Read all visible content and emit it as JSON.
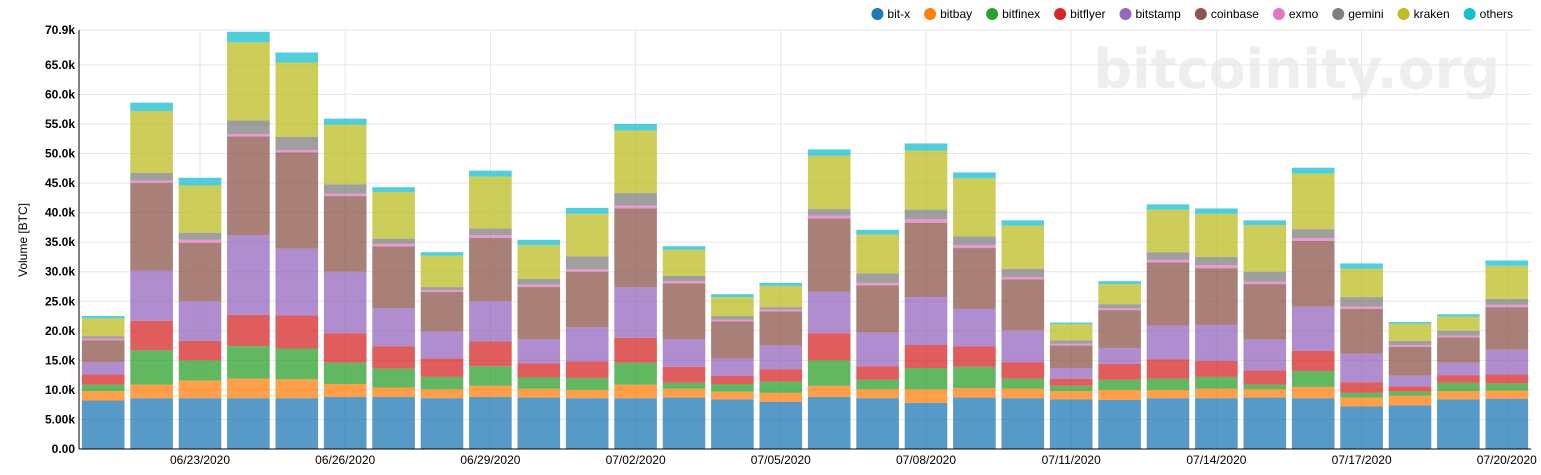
{
  "chart_data": {
    "type": "bar",
    "stacked": true,
    "watermark": "bitcoinity.org",
    "ylabel": "Volume [BTC]",
    "ylim": [
      0,
      70900
    ],
    "grid": true,
    "legend_position": "top-right",
    "y_ticks": [
      {
        "value": 0,
        "label": "0.00"
      },
      {
        "value": 5000,
        "label": "5.00k"
      },
      {
        "value": 10000,
        "label": "10.0k"
      },
      {
        "value": 15000,
        "label": "15.0k"
      },
      {
        "value": 20000,
        "label": "20.0k"
      },
      {
        "value": 25000,
        "label": "25.0k"
      },
      {
        "value": 30000,
        "label": "30.0k"
      },
      {
        "value": 35000,
        "label": "35.0k"
      },
      {
        "value": 40000,
        "label": "40.0k"
      },
      {
        "value": 45000,
        "label": "45.0k"
      },
      {
        "value": 50000,
        "label": "50.0k"
      },
      {
        "value": 55000,
        "label": "55.0k"
      },
      {
        "value": 60000,
        "label": "60.0k"
      },
      {
        "value": 65000,
        "label": "65.0k"
      },
      {
        "value": 70900,
        "label": "70.9k"
      }
    ],
    "x_start": "2020-06-21",
    "x_end": "2020-07-20",
    "x_ticks": [
      "06/23/2020",
      "06/26/2020",
      "06/29/2020",
      "07/02/2020",
      "07/05/2020",
      "07/08/2020",
      "07/11/2020",
      "07/14/2020",
      "07/17/2020",
      "07/20/2020"
    ],
    "categories": [
      "2020-06-21",
      "2020-06-22",
      "2020-06-23",
      "2020-06-24",
      "2020-06-25",
      "2020-06-26",
      "2020-06-27",
      "2020-06-28",
      "2020-06-29",
      "2020-06-30",
      "2020-07-01",
      "2020-07-02",
      "2020-07-03",
      "2020-07-04",
      "2020-07-05",
      "2020-07-06",
      "2020-07-07",
      "2020-07-08",
      "2020-07-09",
      "2020-07-10",
      "2020-07-11",
      "2020-07-12",
      "2020-07-13",
      "2020-07-14",
      "2020-07-15",
      "2020-07-16",
      "2020-07-17",
      "2020-07-18",
      "2020-07-19",
      "2020-07-20"
    ],
    "series": [
      {
        "name": "bit-x",
        "color": "#1f77b4",
        "values": [
          8200,
          8600,
          8600,
          8600,
          8600,
          8800,
          8800,
          8600,
          8800,
          8700,
          8600,
          8600,
          8700,
          8400,
          8000,
          8800,
          8600,
          7800,
          8700,
          8600,
          8400,
          8300,
          8600,
          8600,
          8700,
          8600,
          7200,
          7400,
          8400,
          8500
        ]
      },
      {
        "name": "bitbay",
        "color": "#ff7f0e",
        "values": [
          1600,
          2300,
          3000,
          3300,
          3200,
          2200,
          1600,
          1500,
          1900,
          1500,
          1400,
          2300,
          1500,
          1300,
          1500,
          1900,
          1500,
          2300,
          1600,
          1600,
          1400,
          1700,
          1400,
          1600,
          1400,
          1900,
          1500,
          1600,
          1400,
          1400
        ]
      },
      {
        "name": "bitfinex",
        "color": "#2ca02c",
        "values": [
          1100,
          5800,
          3400,
          5500,
          5200,
          3600,
          3200,
          2100,
          3300,
          1900,
          2000,
          3700,
          1000,
          1300,
          1900,
          4300,
          1600,
          3600,
          3600,
          1700,
          900,
          1700,
          1900,
          2000,
          800,
          2700,
          800,
          700,
          1400,
          1200
        ]
      },
      {
        "name": "bitflyer",
        "color": "#d62728",
        "values": [
          1700,
          5000,
          3300,
          5300,
          5600,
          5000,
          3800,
          3100,
          4200,
          2400,
          2800,
          4200,
          2700,
          1400,
          2100,
          4600,
          2300,
          3900,
          3500,
          2800,
          1200,
          2700,
          3300,
          2700,
          2400,
          3400,
          1800,
          900,
          1300,
          1500
        ]
      },
      {
        "name": "bitstamp",
        "color": "#9467bd",
        "values": [
          2100,
          8500,
          6700,
          13500,
          11300,
          10400,
          6400,
          4600,
          6800,
          4100,
          5800,
          8600,
          4700,
          2900,
          4000,
          7000,
          5700,
          8100,
          6300,
          5400,
          1800,
          2700,
          5700,
          6100,
          5200,
          7500,
          4800,
          1800,
          2100,
          4200
        ]
      },
      {
        "name": "coinbase",
        "color": "#8c564b",
        "values": [
          3700,
          14800,
          9900,
          16700,
          16300,
          12800,
          10500,
          6700,
          10700,
          8800,
          9400,
          13300,
          9400,
          6300,
          5800,
          12400,
          8000,
          12600,
          10300,
          8600,
          3800,
          6400,
          10700,
          9600,
          9400,
          11100,
          7600,
          4900,
          4300,
          7200
        ]
      },
      {
        "name": "exmo",
        "color": "#e377c2",
        "values": [
          300,
          400,
          500,
          400,
          400,
          400,
          400,
          300,
          500,
          400,
          400,
          500,
          400,
          300,
          300,
          500,
          400,
          600,
          500,
          400,
          300,
          300,
          400,
          500,
          400,
          500,
          400,
          300,
          300,
          400
        ]
      },
      {
        "name": "gemini",
        "color": "#7f7f7f",
        "values": [
          400,
          1300,
          1200,
          2300,
          2200,
          1600,
          900,
          500,
          1100,
          1000,
          2200,
          2100,
          900,
          600,
          400,
          1100,
          1600,
          1600,
          1500,
          1400,
          600,
          700,
          1300,
          1400,
          1700,
          1500,
          1600,
          700,
          800,
          1000
        ]
      },
      {
        "name": "kraken",
        "color": "#bcbd22",
        "values": [
          3000,
          10500,
          8000,
          13200,
          12600,
          10100,
          7900,
          5300,
          8800,
          5700,
          7200,
          10600,
          4400,
          3200,
          3600,
          9000,
          6600,
          10000,
          9800,
          7300,
          2700,
          3400,
          7200,
          7300,
          7900,
          9400,
          4800,
          2900,
          2400,
          5600
        ]
      },
      {
        "name": "others",
        "color": "#17becf",
        "values": [
          400,
          1400,
          1300,
          1800,
          1700,
          1000,
          800,
          600,
          1000,
          900,
          1000,
          1100,
          600,
          500,
          500,
          1100,
          800,
          1200,
          1000,
          900,
          300,
          500,
          900,
          900,
          800,
          1000,
          900,
          300,
          400,
          900
        ]
      }
    ]
  }
}
